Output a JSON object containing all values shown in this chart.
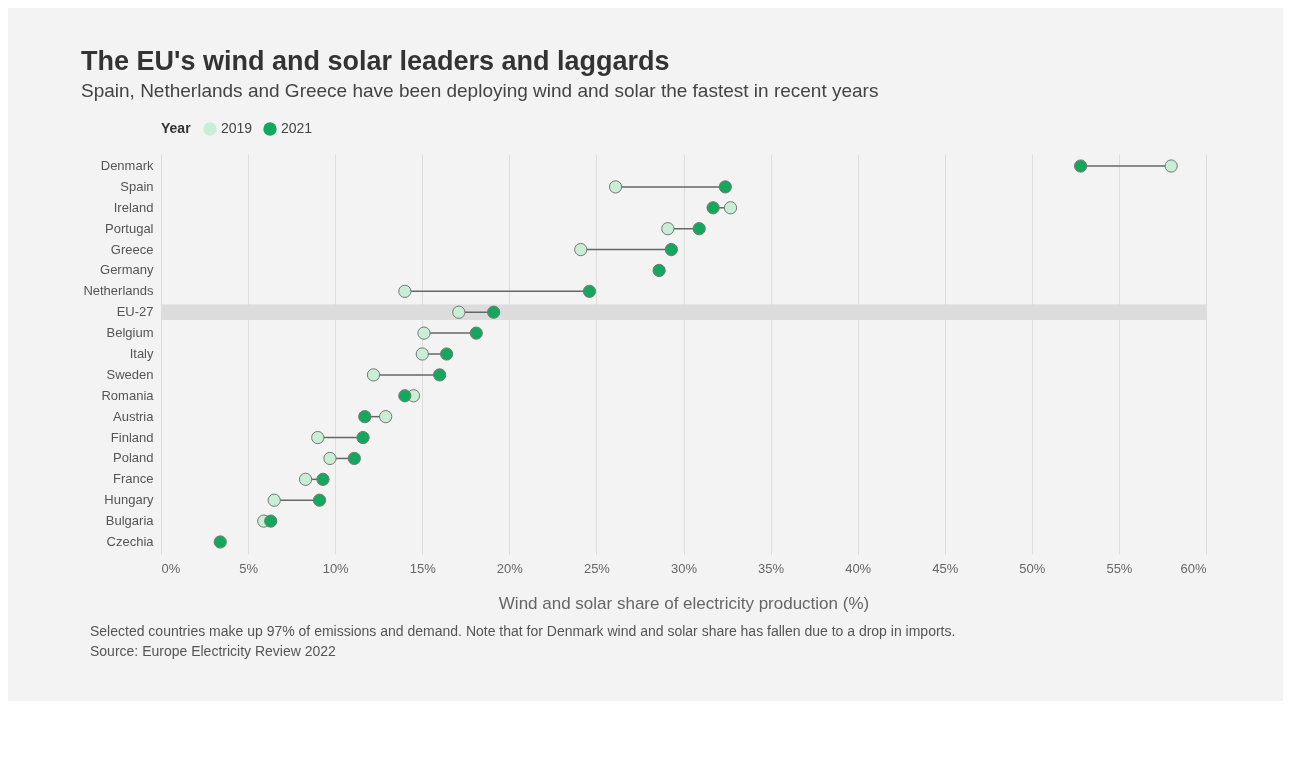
{
  "chart_data": {
    "type": "scatter",
    "title": "The EU's wind and solar leaders and laggards",
    "subtitle": "Spain, Netherlands and Greece have been deploying wind and solar the fastest in recent years",
    "xlabel": "Wind and solar share of electricity production (%)",
    "legend_title": "Year",
    "legend": "top left",
    "orientation": "horizontal",
    "grid": "x",
    "marker": "circle",
    "categories": [
      "Denmark",
      "Spain",
      "Ireland",
      "Portugal",
      "Greece",
      "Germany",
      "Netherlands",
      "EU-27",
      "Belgium",
      "Italy",
      "Sweden",
      "Romania",
      "Austria",
      "Finland",
      "Poland",
      "France",
      "Hungary",
      "Bulgaria",
      "Czechia"
    ],
    "series": [
      {
        "name": "2019",
        "color": "#c8eed5",
        "values": [
          58.0,
          26.1,
          32.7,
          29.1,
          24.1,
          null,
          14.0,
          17.1,
          15.1,
          15.0,
          12.2,
          14.5,
          12.9,
          9.0,
          9.7,
          8.3,
          6.5,
          5.9,
          null
        ]
      },
      {
        "name": "2021",
        "color": "#13a85c",
        "values": [
          52.8,
          32.4,
          31.7,
          30.9,
          29.3,
          28.6,
          24.6,
          19.1,
          18.1,
          16.4,
          16.0,
          14.0,
          11.7,
          11.6,
          11.1,
          9.3,
          9.1,
          6.3,
          3.4
        ]
      }
    ],
    "xlim": [
      0,
      60
    ],
    "xticks": [
      {
        "value": 0,
        "label": "0%"
      },
      {
        "value": 5,
        "label": "5%"
      },
      {
        "value": 10,
        "label": "10%"
      },
      {
        "value": 15,
        "label": "15%"
      },
      {
        "value": 20,
        "label": "20%"
      },
      {
        "value": 25,
        "label": "25%"
      },
      {
        "value": 30,
        "label": "30%"
      },
      {
        "value": 35,
        "label": "35%"
      },
      {
        "value": 40,
        "label": "40%"
      },
      {
        "value": 45,
        "label": "45%"
      },
      {
        "value": 50,
        "label": "50%"
      },
      {
        "value": 55,
        "label": "55%"
      },
      {
        "value": 60,
        "label": "60%"
      }
    ],
    "bands": [
      {
        "axis": "y",
        "from": "EU-27",
        "to": "EU-27",
        "color": "#dcdcdc"
      }
    ],
    "annotations": [
      "Selected countries make up 97% of emissions and demand. Note that for Denmark wind and solar share has fallen due to a drop in imports.",
      "Source: Europe Electricity Review 2022"
    ]
  }
}
